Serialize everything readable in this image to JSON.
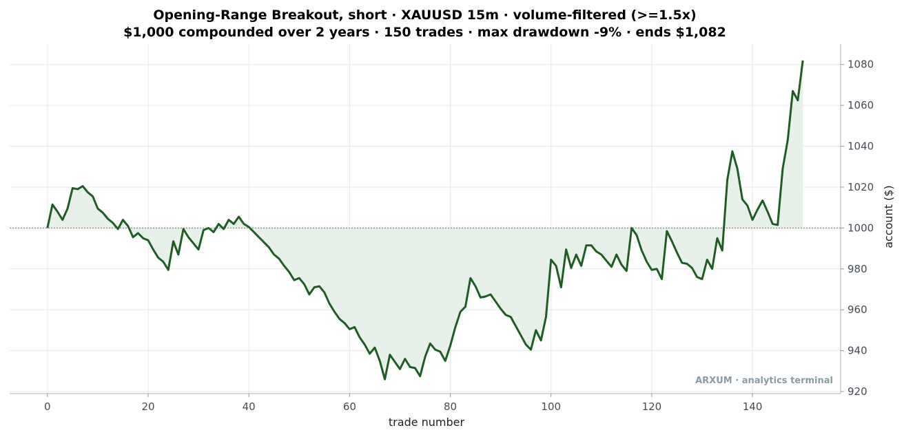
{
  "chart_data": {
    "type": "line",
    "title": "Opening-Range Breakout, short · XAUUSD 15m · volume-filtered (>=1.5x)",
    "subtitle": "$1,000 compounded over 2 years · 150 trades · max drawdown -9% · ends $1,082",
    "xlabel": "trade number",
    "ylabel": "account ($)",
    "xlim": [
      -7.5,
      157.5
    ],
    "ylim": [
      919,
      1090
    ],
    "x_ticks": [
      0,
      20,
      40,
      60,
      80,
      100,
      120,
      140
    ],
    "y_ticks": [
      920,
      940,
      960,
      980,
      1000,
      1020,
      1040,
      1060,
      1080
    ],
    "y_axis_side": "right",
    "grid": true,
    "baseline": 1000,
    "colors": {
      "line": "#1f5c24",
      "fill": "#e8f0ea",
      "baseline": "#888888",
      "grid": "#e6e9ec"
    },
    "watermark": "ARXUM · analytics terminal",
    "series": [
      {
        "values": [
          1000,
          1011.5,
          1008,
          1004,
          1009.5,
          1019.5,
          1019,
          1020.5,
          1017.5,
          1015.5,
          1009.5,
          1007.5,
          1004.5,
          1002.5,
          999.5,
          1004,
          1001,
          995.5,
          997.5,
          995,
          994,
          989.5,
          985.5,
          983.5,
          979.5,
          993.5,
          987,
          999.5,
          995.5,
          992.5,
          989.5,
          999,
          1000,
          998,
          1002,
          999.5,
          1004,
          1002,
          1005.5,
          1002,
          1000.5,
          998,
          995.5,
          993,
          990.5,
          987,
          985,
          981.5,
          978.5,
          974.5,
          975.5,
          972.5,
          967.5,
          971,
          971.5,
          968.5,
          963,
          959,
          955.5,
          953.5,
          950.5,
          951.5,
          946.5,
          943,
          938.5,
          941.5,
          935,
          926,
          938,
          934.5,
          931,
          936,
          932,
          931.5,
          927.5,
          937,
          943.5,
          940.5,
          939.5,
          935,
          942.5,
          951.5,
          959,
          961.5,
          975.5,
          971.5,
          966,
          966.5,
          967.5,
          964,
          960.5,
          957.5,
          956.5,
          952,
          947.5,
          943,
          940.5,
          950,
          945,
          956.5,
          984.5,
          981.5,
          971,
          989.5,
          980.5,
          987,
          981.5,
          991.5,
          991.5,
          988.5,
          987,
          984,
          981,
          987,
          982,
          979,
          1000,
          996.5,
          989,
          983.5,
          979.5,
          980,
          975,
          998.5,
          993.5,
          988,
          983,
          982.5,
          980.5,
          976,
          975,
          984.5,
          980,
          995,
          989,
          1023.5,
          1037.5,
          1029,
          1014,
          1011,
          1004,
          1009,
          1013.5,
          1008,
          1002,
          1001.5,
          1029,
          1043,
          1067,
          1062.5,
          1082
        ]
      }
    ]
  }
}
